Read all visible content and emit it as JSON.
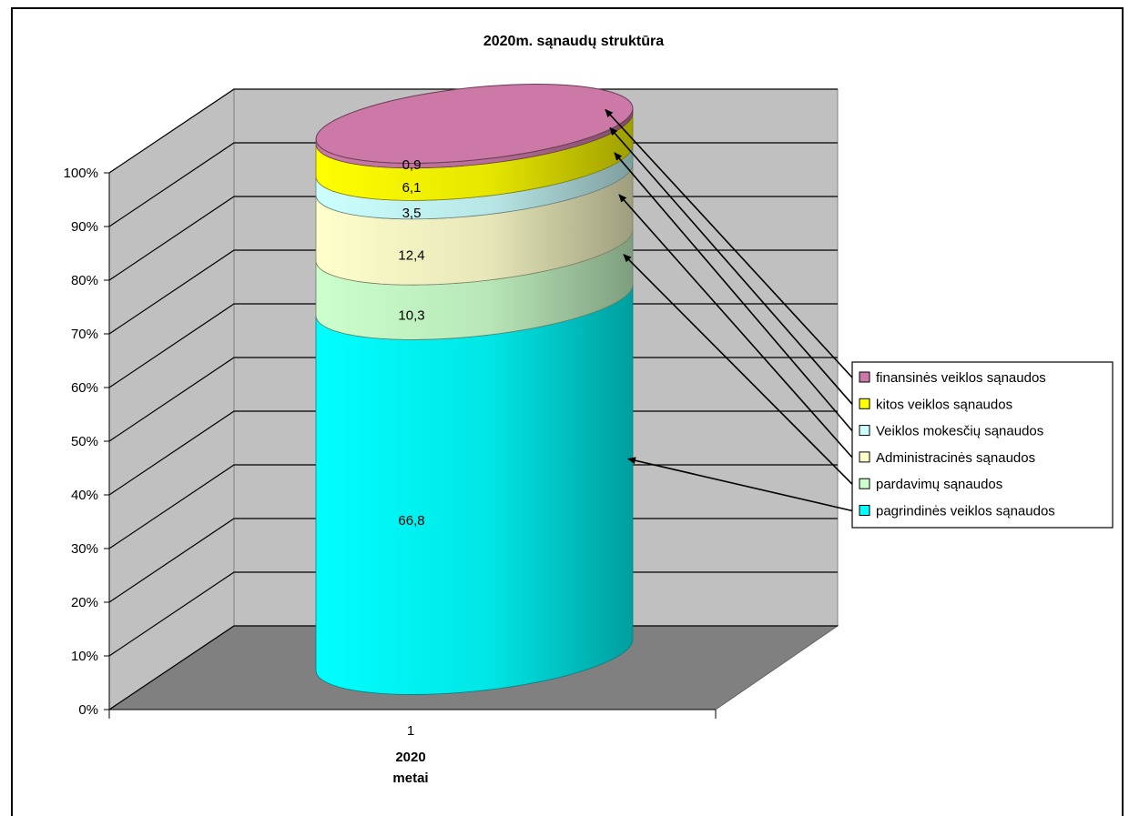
{
  "chart_data": {
    "type": "bar",
    "variant": "3d-stacked-percent-cylinder",
    "title": "2020m. sąnaudų struktūra",
    "category_ticks": [
      "1"
    ],
    "xlabel_lines": [
      "2020",
      "metai"
    ],
    "ylim": [
      0,
      100
    ],
    "y_ticks": [
      "0%",
      "10%",
      "20%",
      "30%",
      "40%",
      "50%",
      "60%",
      "70%",
      "80%",
      "90%",
      "100%"
    ],
    "grid": true,
    "legend_position": "right",
    "series": [
      {
        "name": "pagrindinės veiklos sąnaudos",
        "values": [
          66.8
        ],
        "label": "66,8",
        "color": "#00FFFF"
      },
      {
        "name": "pardavimų sąnaudos",
        "values": [
          10.3
        ],
        "label": "10,3",
        "color": "#CCFFCC"
      },
      {
        "name": "Administracinės sąnaudos",
        "values": [
          12.4
        ],
        "label": "12,4",
        "color": "#FFFFCC"
      },
      {
        "name": "Veiklos mokesčių sąnaudos",
        "values": [
          3.5
        ],
        "label": "3,5",
        "color": "#CCFFFF"
      },
      {
        "name": "kitos veiklos sąnaudos",
        "values": [
          6.1
        ],
        "label": "6,1",
        "color": "#FFFF00"
      },
      {
        "name": "finansinės veiklos sąnaudos",
        "values": [
          0.9
        ],
        "label": "0,9",
        "color": "#CC79A7"
      }
    ]
  }
}
